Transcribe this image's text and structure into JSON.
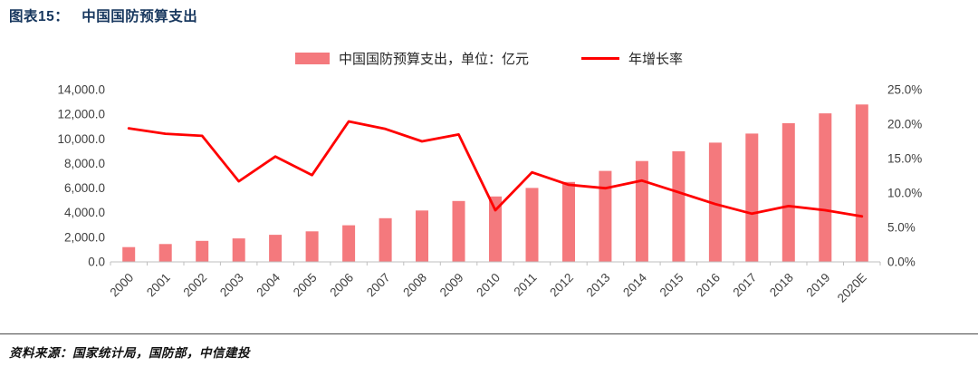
{
  "header": {
    "figure_label": "图表15：",
    "title": "中国国防预算支出"
  },
  "legend": {
    "items": [
      {
        "label": "中国国防预算支出，单位：亿元",
        "swatch": "bar",
        "color": "#F4797D"
      },
      {
        "label": "年增长率",
        "swatch": "line",
        "color": "#FF0000"
      }
    ]
  },
  "chart_data": {
    "type": "bar",
    "title": "中国国防预算支出",
    "categories": [
      "2000",
      "2001",
      "2002",
      "2003",
      "2004",
      "2005",
      "2006",
      "2007",
      "2008",
      "2009",
      "2010",
      "2011",
      "2012",
      "2013",
      "2014",
      "2015",
      "2016",
      "2017",
      "2018",
      "2019",
      "2020E"
    ],
    "series": [
      {
        "name": "中国国防预算支出，单位：亿元",
        "type": "bar",
        "axis": "left",
        "color": "#F4797D",
        "values": [
          1200,
          1450,
          1710,
          1910,
          2200,
          2480,
          2980,
          3550,
          4180,
          4950,
          5320,
          6010,
          6500,
          7400,
          8200,
          9000,
          9700,
          10430,
          11280,
          12080,
          12800
        ]
      },
      {
        "name": "年增长率",
        "type": "line",
        "axis": "right",
        "color": "#FF0000",
        "values": [
          19.4,
          18.6,
          18.3,
          11.7,
          15.3,
          12.6,
          20.4,
          19.3,
          17.5,
          18.5,
          7.5,
          13.0,
          11.2,
          10.7,
          11.8,
          10.1,
          8.4,
          7.0,
          8.1,
          7.5,
          6.6
        ]
      }
    ],
    "left_axis": {
      "min": 0,
      "max": 14000,
      "tick_step": 2000,
      "tick_labels": [
        "0.0",
        "2,000.0",
        "4,000.0",
        "6,000.0",
        "8,000.0",
        "10,000.0",
        "12,000.0",
        "14,000.0"
      ]
    },
    "right_axis": {
      "min": 0,
      "max": 25,
      "tick_step": 5,
      "tick_labels": [
        "0.0%",
        "5.0%",
        "10.0%",
        "15.0%",
        "20.0%",
        "25.0%"
      ]
    },
    "grid": false,
    "legend_position": "top"
  },
  "source": {
    "text": "资料来源：国家统计局，国防部，中信建投"
  }
}
